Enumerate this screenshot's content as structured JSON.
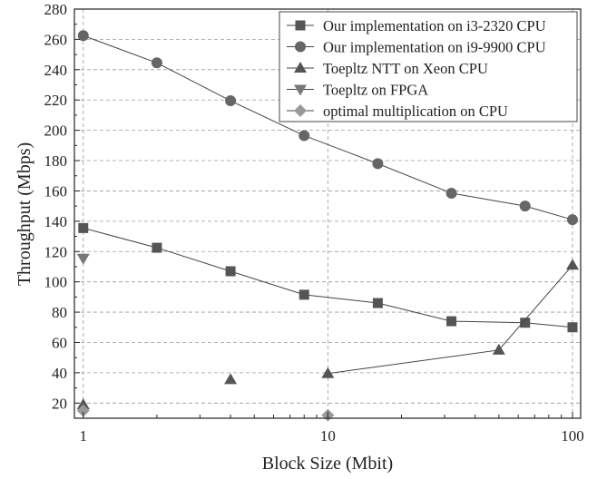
{
  "chart_data": {
    "type": "line",
    "title": "",
    "xlabel": "Block Size (Mbit)",
    "ylabel": "Throughput (Mbps)",
    "xscale": "log",
    "xlim": [
      0.92,
      108
    ],
    "ylim": [
      10,
      280
    ],
    "xticks": [
      1,
      10,
      100
    ],
    "xtick_labels": [
      "1",
      "10",
      "100"
    ],
    "yticks": [
      20,
      40,
      60,
      80,
      100,
      120,
      140,
      160,
      180,
      200,
      220,
      240,
      260,
      280
    ],
    "ytick_labels": [
      "20",
      "40",
      "60",
      "80",
      "100",
      "120",
      "140",
      "160",
      "180",
      "200",
      "220",
      "240",
      "260",
      "280"
    ],
    "grid": true,
    "legend_position": "top-right",
    "series": [
      {
        "name": "Our implementation on i3-2320 CPU",
        "marker": "square",
        "color": "#555555",
        "connected": true,
        "x": [
          1,
          2,
          4,
          8,
          16,
          32,
          64,
          100
        ],
        "y": [
          135.5,
          122.5,
          107,
          91.5,
          86,
          74,
          73,
          70
        ]
      },
      {
        "name": "Our implementation on i9-9900 CPU",
        "marker": "circle",
        "color": "#666666",
        "connected": true,
        "x": [
          1,
          2,
          4,
          8,
          16,
          32,
          64,
          100
        ],
        "y": [
          262.5,
          244.5,
          219.5,
          196.5,
          178,
          158.5,
          150,
          141
        ]
      },
      {
        "name": "Toepltz NTT on Xeon CPU",
        "marker": "triangle-up",
        "color": "#555555",
        "connected": [
          false,
          false,
          true,
          true,
          true
        ],
        "x": [
          1,
          4,
          10,
          50,
          100
        ],
        "y": [
          19,
          35.5,
          39.5,
          55,
          111
        ]
      },
      {
        "name": "Toepltz on FPGA",
        "marker": "triangle-down",
        "color": "#777777",
        "connected": false,
        "x": [
          1
        ],
        "y": [
          115.5
        ]
      },
      {
        "name": "optimal multiplication on CPU",
        "marker": "diamond",
        "color": "#999999",
        "connected": false,
        "x": [
          1,
          10
        ],
        "y": [
          15,
          12
        ]
      }
    ]
  }
}
